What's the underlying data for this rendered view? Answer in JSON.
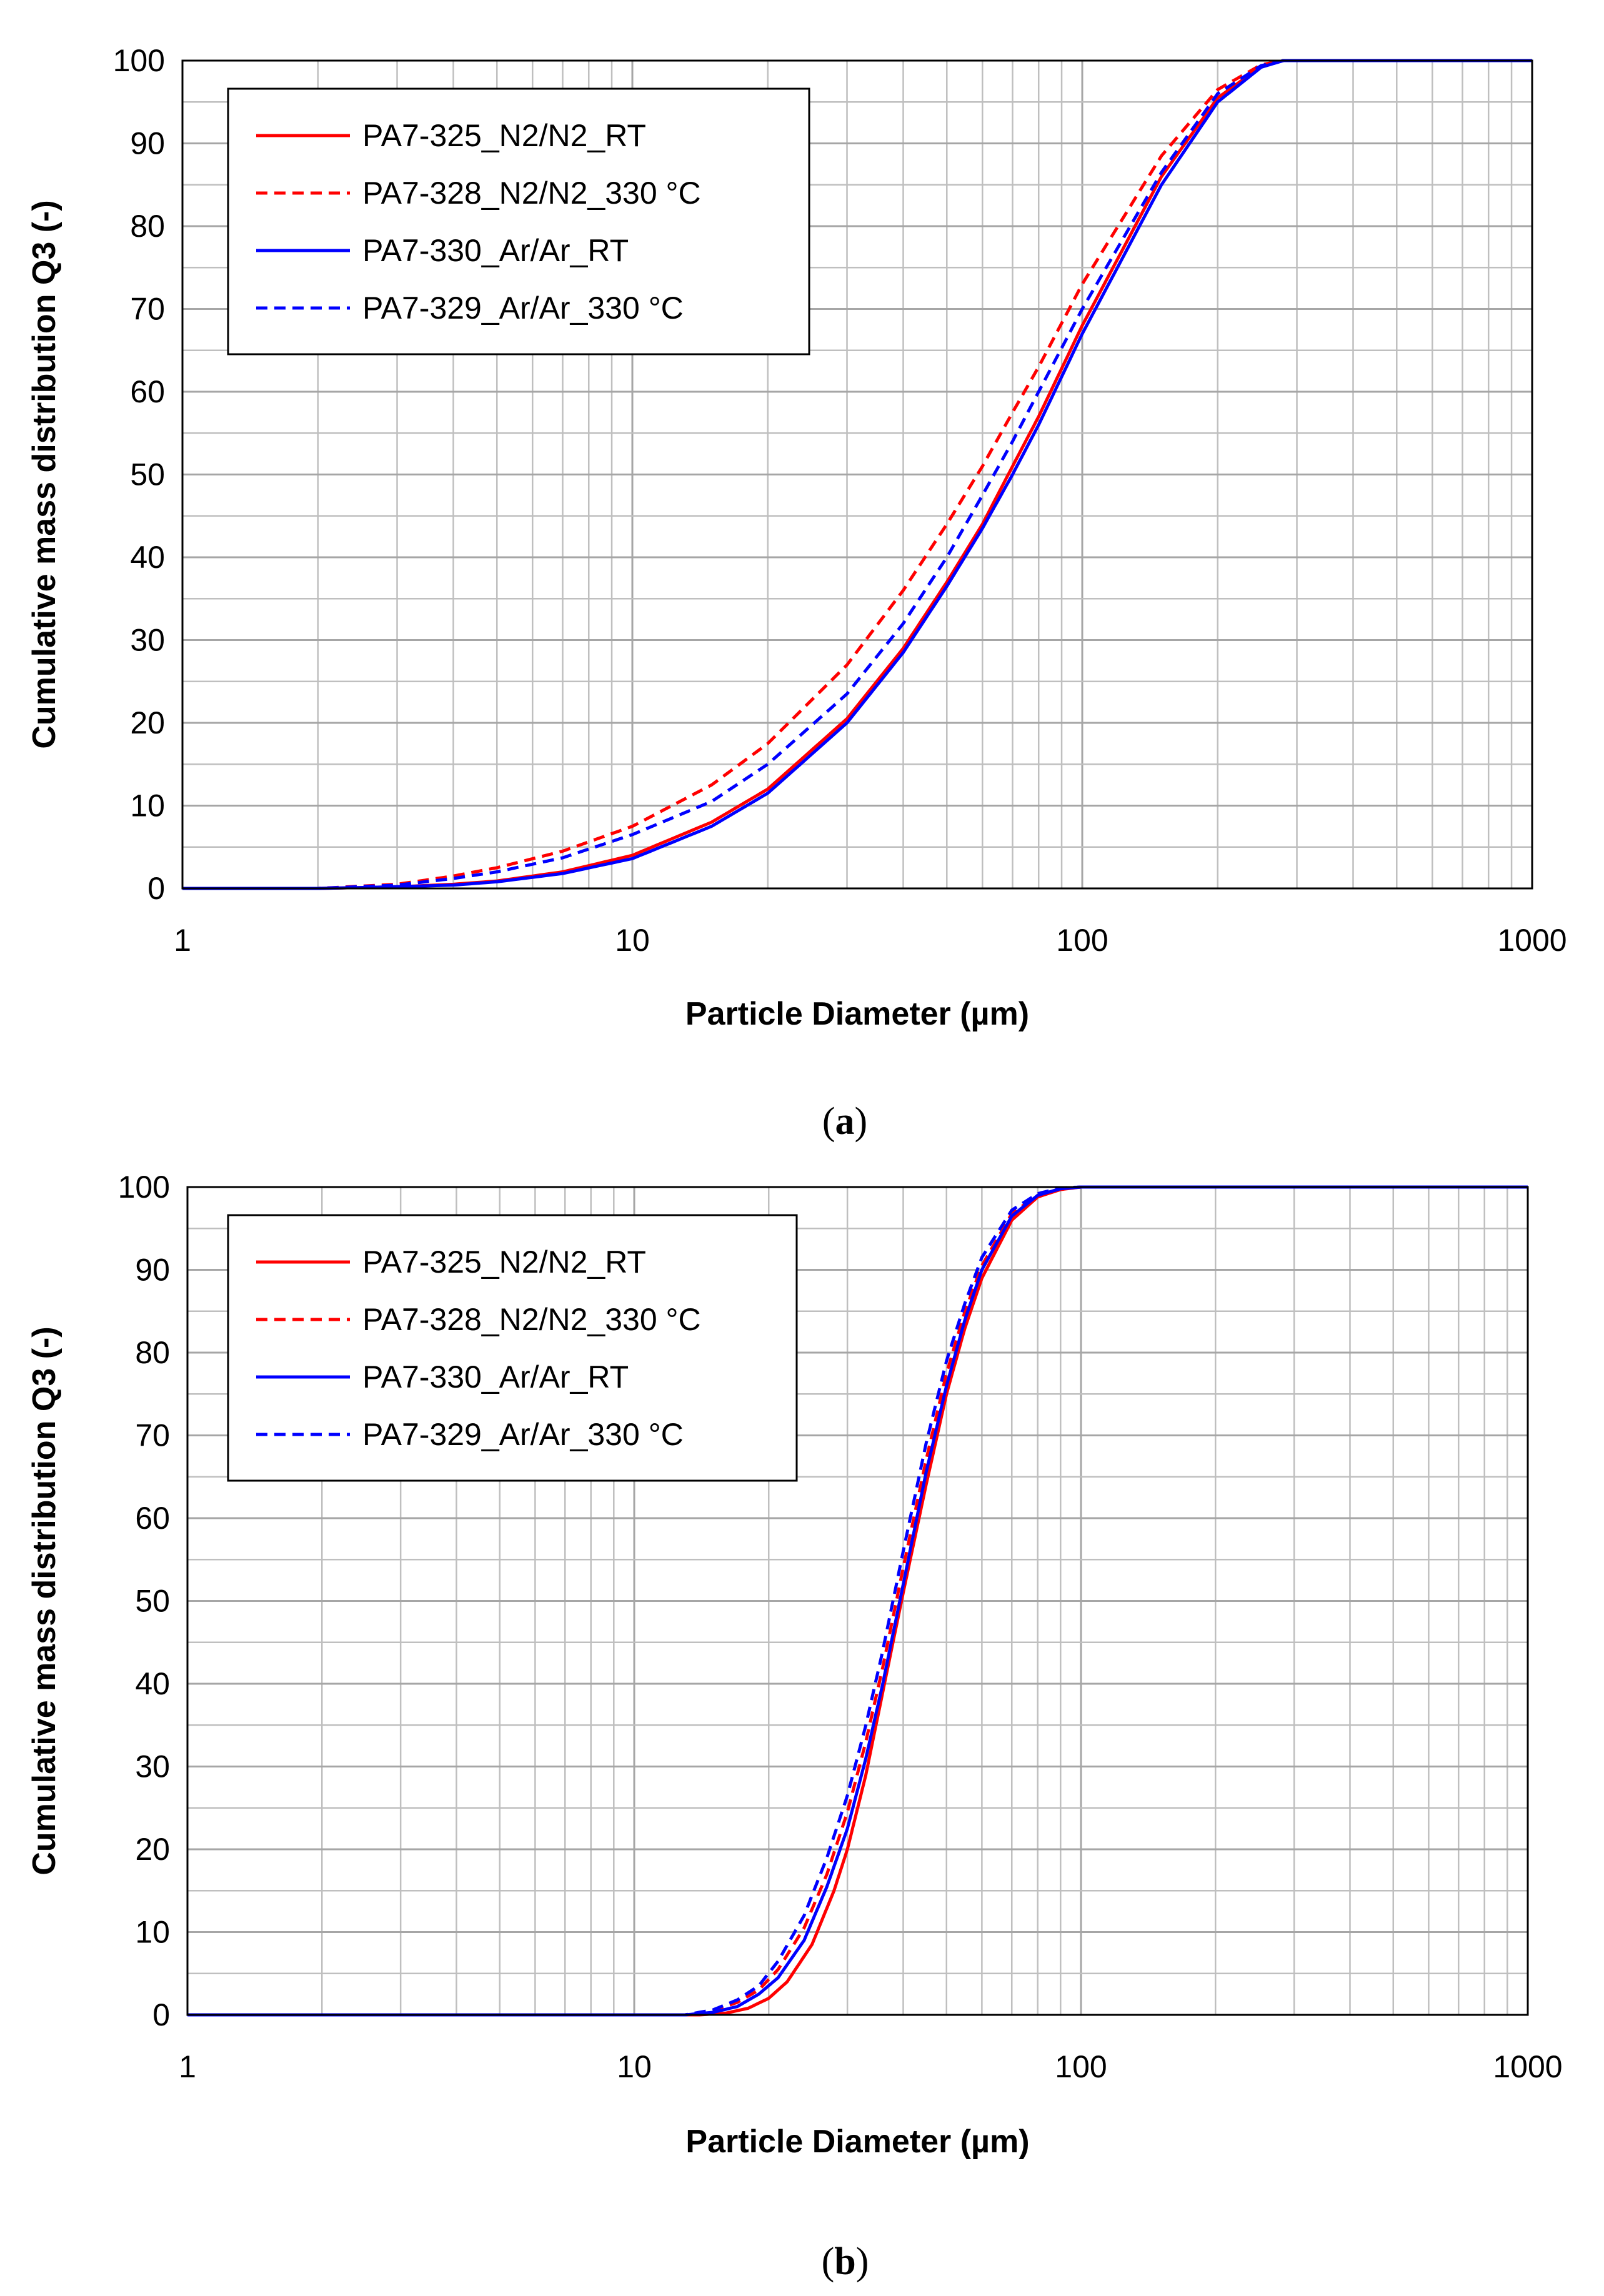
{
  "chart_data": [
    {
      "type": "line",
      "panel_label": "a",
      "title": "",
      "xlabel": "Particle Diameter (µm)",
      "ylabel": "Cumulative mass distribution Q3 (-)",
      "xscale": "log",
      "xlim": [
        1,
        1000
      ],
      "ylim": [
        0,
        100
      ],
      "xticks": [
        1,
        10,
        100,
        1000
      ],
      "xtick_labels": [
        "1",
        "10",
        "100",
        "1000"
      ],
      "yticks": [
        0,
        10,
        20,
        30,
        40,
        50,
        60,
        70,
        80,
        90,
        100
      ],
      "ytick_labels": [
        "0",
        "10",
        "20",
        "30",
        "40",
        "50",
        "60",
        "70",
        "80",
        "90",
        "100"
      ],
      "grid": true,
      "legend_position": "top-left",
      "series": [
        {
          "name": "PA7-325_N2/N2_RT",
          "color": "#ff0000",
          "dash": "solid",
          "x": [
            1,
            2,
            3,
            4,
            5,
            7,
            10,
            15,
            20,
            30,
            40,
            50,
            60,
            70,
            80,
            100,
            150,
            200,
            250,
            280,
            1000
          ],
          "y": [
            0,
            0,
            0.2,
            0.5,
            0.9,
            2,
            4,
            8,
            12,
            20.5,
            29,
            37,
            44,
            51,
            57,
            68,
            86,
            95.5,
            99.3,
            100,
            100
          ]
        },
        {
          "name": "PA7-328_N2/N2_330 °C",
          "color": "#ff0000",
          "dash": "dashed",
          "x": [
            1,
            2,
            3,
            4,
            5,
            7,
            10,
            15,
            20,
            30,
            40,
            50,
            60,
            70,
            80,
            100,
            150,
            200,
            250,
            280,
            1000
          ],
          "y": [
            0,
            0,
            0.5,
            1.5,
            2.5,
            4.5,
            7.5,
            12.5,
            17.5,
            27,
            36,
            44,
            51,
            57.5,
            63,
            73,
            88.5,
            96.5,
            99.5,
            100,
            100
          ]
        },
        {
          "name": "PA7-330_Ar/Ar_RT",
          "color": "#0000ff",
          "dash": "solid",
          "x": [
            1,
            2,
            3,
            4,
            5,
            7,
            10,
            15,
            20,
            30,
            40,
            50,
            60,
            70,
            80,
            100,
            150,
            200,
            250,
            280,
            1000
          ],
          "y": [
            0,
            0,
            0.2,
            0.4,
            0.8,
            1.8,
            3.6,
            7.5,
            11.5,
            20,
            28.5,
            36.5,
            43.5,
            50,
            56,
            67,
            85,
            95,
            99.2,
            100,
            100
          ]
        },
        {
          "name": "PA7-329_Ar/Ar_330 °C",
          "color": "#0000ff",
          "dash": "dashed",
          "x": [
            1,
            2,
            3,
            4,
            5,
            7,
            10,
            15,
            20,
            30,
            40,
            50,
            60,
            70,
            80,
            100,
            150,
            200,
            250,
            280,
            1000
          ],
          "y": [
            0,
            0,
            0.4,
            1.2,
            2,
            3.7,
            6.5,
            10.5,
            15,
            23.5,
            32,
            40,
            47.5,
            54,
            60,
            70,
            86.5,
            96,
            99.4,
            100,
            100
          ]
        }
      ]
    },
    {
      "type": "line",
      "panel_label": "b",
      "title": "",
      "xlabel": "Particle Diameter (µm)",
      "ylabel": "Cumulative mass distribution Q3 (-)",
      "xscale": "log",
      "xlim": [
        1,
        1000
      ],
      "ylim": [
        0,
        100
      ],
      "xticks": [
        1,
        10,
        100,
        1000
      ],
      "xtick_labels": [
        "1",
        "10",
        "100",
        "1000"
      ],
      "yticks": [
        0,
        10,
        20,
        30,
        40,
        50,
        60,
        70,
        80,
        90,
        100
      ],
      "ytick_labels": [
        "0",
        "10",
        "20",
        "30",
        "40",
        "50",
        "60",
        "70",
        "80",
        "90",
        "100"
      ],
      "grid": true,
      "legend_position": "top-left",
      "series": [
        {
          "name": "PA7-325_N2/N2_RT",
          "color": "#ff0000",
          "dash": "solid",
          "x": [
            1,
            14,
            16,
            18,
            20,
            22,
            25,
            28,
            30,
            33,
            36,
            40,
            45,
            50,
            55,
            60,
            70,
            80,
            90,
            100,
            1000
          ],
          "y": [
            0,
            0,
            0.2,
            0.8,
            2,
            4,
            8.5,
            15,
            20,
            29,
            39,
            51,
            64,
            75,
            83,
            89,
            96,
            98.8,
            99.7,
            100,
            100
          ]
        },
        {
          "name": "PA7-328_N2/N2_330 °C",
          "color": "#ff0000",
          "dash": "dashed",
          "x": [
            1,
            13,
            15,
            17,
            19,
            21,
            24,
            27,
            30,
            33,
            36,
            40,
            45,
            50,
            55,
            60,
            70,
            80,
            90,
            100,
            1000
          ],
          "y": [
            0,
            0,
            0.5,
            1.5,
            3,
            5.5,
            10.5,
            17,
            24.5,
            33,
            42,
            54,
            67,
            77.5,
            85,
            90.5,
            96.8,
            99,
            99.8,
            100,
            100
          ]
        },
        {
          "name": "PA7-330_Ar/Ar_RT",
          "color": "#0000ff",
          "dash": "solid",
          "x": [
            1,
            13,
            15,
            17,
            19,
            21,
            24,
            27,
            30,
            33,
            36,
            40,
            45,
            50,
            55,
            60,
            70,
            80,
            90,
            100,
            1000
          ],
          "y": [
            0,
            0,
            0.3,
            1,
            2.5,
            4.5,
            9,
            15.5,
            22.5,
            31,
            40,
            52,
            65.5,
            76,
            84,
            90,
            96.5,
            99,
            99.8,
            100,
            100
          ]
        },
        {
          "name": "PA7-329_Ar/Ar_330 °C",
          "color": "#0000ff",
          "dash": "dashed",
          "x": [
            1,
            13,
            15,
            17,
            19,
            21,
            24,
            27,
            30,
            33,
            36,
            40,
            45,
            50,
            55,
            60,
            70,
            80,
            90,
            100,
            1000
          ],
          "y": [
            0,
            0,
            0.6,
            1.8,
            3.5,
            6.5,
            12,
            19,
            26.5,
            35,
            44,
            56,
            69,
            79,
            86,
            91.5,
            97.2,
            99.2,
            99.9,
            100,
            100
          ]
        }
      ]
    }
  ]
}
